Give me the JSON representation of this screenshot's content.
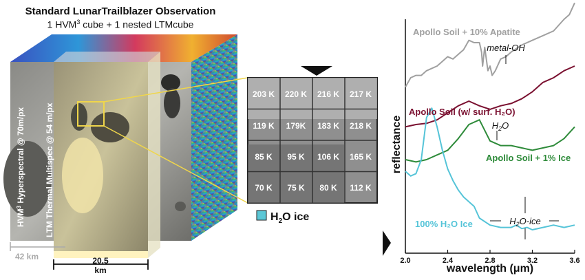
{
  "title": {
    "line1": "Standard LunarTrailblazer Observation",
    "line2_prefix": "1 HVM",
    "line2_sup": "3",
    "line2_suffix": " cube + 1 nested LTMcube"
  },
  "cube": {
    "hvm_label_prefix": "HVM",
    "hvm_label_sup": "3",
    "hvm_label_suffix": " Hyperspectral @ 70m/px",
    "ltm_label": "LTM Thermal Multispec @ 54 m/px",
    "scale_42": "42 km",
    "scale_205_line1": "20.5",
    "scale_205_line2": "km"
  },
  "temperature_grid": {
    "rows": [
      [
        "203 K",
        "220 K",
        "216 K",
        "217 K"
      ],
      [
        "119 K",
        "179K",
        "183 K",
        "218 K"
      ],
      [
        "85 K",
        "95 K",
        "106 K",
        "165 K"
      ],
      [
        "70 K",
        "75 K",
        "80 K",
        "112 K"
      ]
    ],
    "legend_prefix": "H",
    "legend_sub": "2",
    "legend_suffix": "O ice",
    "legend_color": "#5bc7d6"
  },
  "chart_data": {
    "type": "line",
    "xlabel": "wavelength (μm)",
    "ylabel": "reflectance",
    "xlim": [
      2.0,
      3.6
    ],
    "x_ticks": [
      "2.0",
      "2.4",
      "2.8",
      "3.2",
      "3.6"
    ],
    "series": [
      {
        "name": "Apollo Soil + 10% Apatite",
        "color": "#a0a0a0",
        "x": [
          2.0,
          2.05,
          2.1,
          2.15,
          2.2,
          2.25,
          2.3,
          2.35,
          2.4,
          2.45,
          2.5,
          2.55,
          2.6,
          2.65,
          2.7,
          2.72,
          2.73,
          2.75,
          2.78,
          2.8,
          2.82,
          2.85,
          2.9,
          2.95,
          3.0,
          3.1,
          3.2,
          3.3,
          3.4,
          3.5,
          3.55,
          3.6
        ],
        "y": [
          0.71,
          0.75,
          0.76,
          0.76,
          0.78,
          0.79,
          0.8,
          0.82,
          0.84,
          0.83,
          0.85,
          0.87,
          0.91,
          0.9,
          0.9,
          0.86,
          0.8,
          0.88,
          0.78,
          0.8,
          0.76,
          0.78,
          0.83,
          0.84,
          0.86,
          0.89,
          0.91,
          0.93,
          0.95,
          1.0,
          1.02,
          1.07
        ]
      },
      {
        "name": "Apollo Soil (w/ surf. H₂O)",
        "color": "#7a1030",
        "x": [
          2.0,
          2.1,
          2.2,
          2.3,
          2.4,
          2.5,
          2.6,
          2.7,
          2.8,
          2.9,
          3.0,
          3.1,
          3.2,
          3.3,
          3.4,
          3.5,
          3.6
        ],
        "y": [
          0.54,
          0.55,
          0.555,
          0.57,
          0.6,
          0.63,
          0.65,
          0.63,
          0.615,
          0.63,
          0.64,
          0.66,
          0.69,
          0.73,
          0.75,
          0.78,
          0.8
        ]
      },
      {
        "name": "Apollo Soil + 1% Ice",
        "color": "#2e8b3a",
        "x": [
          2.0,
          2.1,
          2.2,
          2.3,
          2.4,
          2.5,
          2.6,
          2.7,
          2.8,
          2.9,
          3.0,
          3.1,
          3.2,
          3.3,
          3.4,
          3.5,
          3.6
        ],
        "y": [
          0.4,
          0.39,
          0.4,
          0.42,
          0.44,
          0.49,
          0.55,
          0.57,
          0.48,
          0.46,
          0.46,
          0.45,
          0.44,
          0.45,
          0.46,
          0.49,
          0.54
        ]
      },
      {
        "name": "100% H₂O Ice",
        "color": "#55c4d8",
        "x": [
          2.0,
          2.05,
          2.1,
          2.15,
          2.2,
          2.25,
          2.3,
          2.35,
          2.4,
          2.45,
          2.5,
          2.55,
          2.6,
          2.65,
          2.7,
          2.8,
          2.9,
          3.0,
          3.05,
          3.1,
          3.15,
          3.2,
          3.3,
          3.4,
          3.5,
          3.6
        ],
        "y": [
          0.35,
          0.33,
          0.34,
          0.4,
          0.58,
          0.62,
          0.54,
          0.44,
          0.36,
          0.31,
          0.27,
          0.24,
          0.22,
          0.2,
          0.15,
          0.12,
          0.11,
          0.11,
          0.12,
          0.105,
          0.11,
          0.1,
          0.11,
          0.12,
          0.11,
          0.12
        ]
      }
    ],
    "annotations": [
      "metal-OH",
      "H2O",
      "H2O-ice"
    ]
  }
}
